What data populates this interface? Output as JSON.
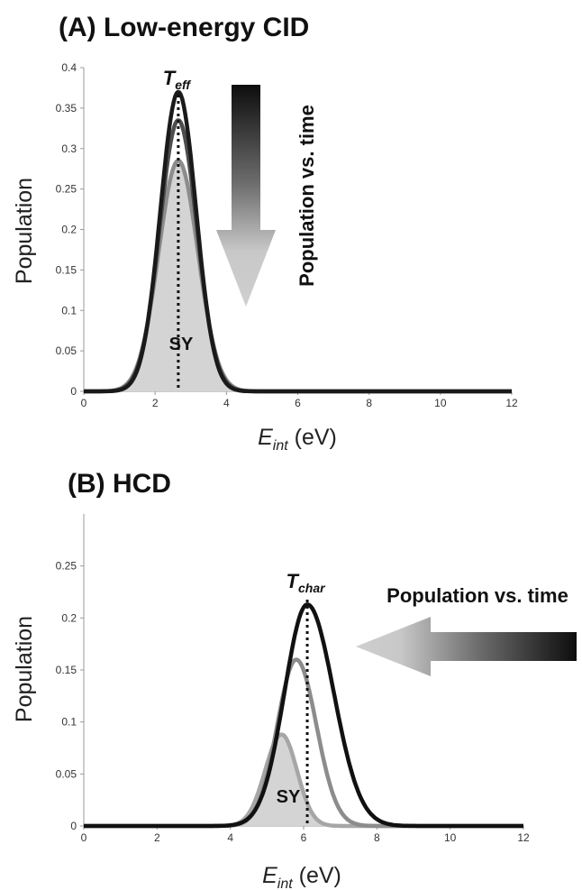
{
  "panels": [
    {
      "title": "(A) Low-energy CID",
      "ylabel": "Population",
      "xlabel_main": "E",
      "xlabel_sub": "int",
      "xlabel_unit": " (eV)",
      "temp_main": "T",
      "temp_sub": "eff",
      "region_label": "SY",
      "arrow_label": "Population vs. time"
    },
    {
      "title": "(B) HCD",
      "ylabel": "Population",
      "xlabel_main": "E",
      "xlabel_sub": "int",
      "xlabel_unit": " (eV)",
      "temp_main": "T",
      "temp_sub": "char",
      "region_label": "SY",
      "arrow_label": "Population vs. time"
    }
  ],
  "chart_data": [
    {
      "type": "area",
      "title": "(A) Low-energy CID",
      "xlabel": "Eint (eV)",
      "ylabel": "Population",
      "xlim": [
        0,
        12
      ],
      "ylim": [
        0,
        0.4
      ],
      "xticks": [
        "0",
        "2",
        "4",
        "6",
        "8",
        "10",
        "12"
      ],
      "yticks": [
        "0",
        "0.05",
        "0.1",
        "0.15",
        "0.2",
        "0.25",
        "0.3",
        "0.35",
        "0.4"
      ],
      "series": [
        {
          "peak_x": 2.65,
          "peak_y": 0.37,
          "width": 0.5,
          "color": "#1a1a1a"
        },
        {
          "peak_x": 2.65,
          "peak_y": 0.335,
          "width": 0.52,
          "color": "#4d4d4d"
        },
        {
          "peak_x": 2.65,
          "peak_y": 0.285,
          "width": 0.55,
          "color": "#8c8c8c",
          "fill": "#d4d4d4"
        }
      ],
      "reference_x": 2.65,
      "arrow_direction": "down",
      "grid": false
    },
    {
      "type": "area",
      "title": "(B) HCD",
      "xlabel": "Eint (eV)",
      "ylabel": "Population",
      "xlim": [
        0,
        12
      ],
      "ylim": [
        0,
        0.3
      ],
      "xticks": [
        "0",
        "2",
        "4",
        "6",
        "8",
        "10",
        "12"
      ],
      "yticks": [
        "0",
        "0.05",
        "0.1",
        "0.15",
        "0.2",
        "0.25"
      ],
      "series": [
        {
          "peak_x": 6.1,
          "peak_y": 0.213,
          "sigma_left": 0.62,
          "sigma_right": 0.72,
          "color": "#111111"
        },
        {
          "peak_x": 5.8,
          "peak_y": 0.16,
          "sigma_left": 0.52,
          "sigma_right": 0.55,
          "color": "#8c8c8c"
        },
        {
          "peak_x": 5.4,
          "peak_y": 0.088,
          "sigma_left": 0.45,
          "sigma_right": 0.42,
          "color": "#a6a6a6",
          "fill": "#d4d4d4"
        }
      ],
      "reference_x": 6.1,
      "arrow_direction": "left",
      "grid": false
    }
  ]
}
